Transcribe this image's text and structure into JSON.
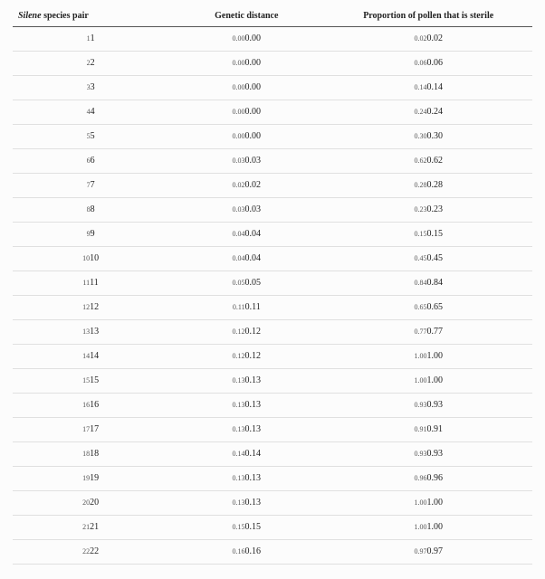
{
  "table": {
    "headers": {
      "col1_italic": "Silene",
      "col1_rest": " species pair",
      "col2": "Genetic distance",
      "col3": "Proportion of pollen that is sterile"
    },
    "col_widths_pct": [
      30,
      30,
      40
    ],
    "header_fontsize_pt": 10,
    "cell_fontsize_small_pt": 8,
    "cell_fontsize_big_pt": 10,
    "border_header_color": "#555555",
    "border_row_color": "#e0e0e0",
    "background_color": "#fcfcfc",
    "text_color": "#333333",
    "rows": [
      {
        "pair": "1",
        "dist": "0.00",
        "prop": "0.02"
      },
      {
        "pair": "2",
        "dist": "0.00",
        "prop": "0.06"
      },
      {
        "pair": "3",
        "dist": "0.00",
        "prop": "0.14"
      },
      {
        "pair": "4",
        "dist": "0.00",
        "prop": "0.24"
      },
      {
        "pair": "5",
        "dist": "0.00",
        "prop": "0.30"
      },
      {
        "pair": "6",
        "dist": "0.03",
        "prop": "0.62"
      },
      {
        "pair": "7",
        "dist": "0.02",
        "prop": "0.28"
      },
      {
        "pair": "8",
        "dist": "0.03",
        "prop": "0.23"
      },
      {
        "pair": "9",
        "dist": "0.04",
        "prop": "0.15"
      },
      {
        "pair": "10",
        "dist": "0.04",
        "prop": "0.45"
      },
      {
        "pair": "11",
        "dist": "0.05",
        "prop": "0.84"
      },
      {
        "pair": "12",
        "dist": "0.11",
        "prop": "0.65"
      },
      {
        "pair": "13",
        "dist": "0.12",
        "prop": "0.77"
      },
      {
        "pair": "14",
        "dist": "0.12",
        "prop": "1.00"
      },
      {
        "pair": "15",
        "dist": "0.13",
        "prop": "1.00"
      },
      {
        "pair": "16",
        "dist": "0.13",
        "prop": "0.93"
      },
      {
        "pair": "17",
        "dist": "0.13",
        "prop": "0.91"
      },
      {
        "pair": "18",
        "dist": "0.14",
        "prop": "0.93"
      },
      {
        "pair": "19",
        "dist": "0.13",
        "prop": "0.96"
      },
      {
        "pair": "20",
        "dist": "0.13",
        "prop": "1.00"
      },
      {
        "pair": "21",
        "dist": "0.15",
        "prop": "1.00"
      },
      {
        "pair": "22",
        "dist": "0.16",
        "prop": "0.97"
      }
    ]
  }
}
